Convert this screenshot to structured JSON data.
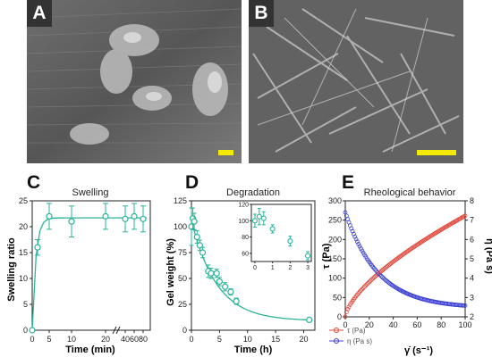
{
  "panels": {
    "a": {
      "label": "A"
    },
    "b": {
      "label": "B"
    },
    "c": {
      "label": "C"
    },
    "d": {
      "label": "D"
    },
    "e": {
      "label": "E"
    }
  },
  "colors": {
    "teal": "#2bb39a",
    "red": "#e0463b",
    "blue": "#3b3fcf",
    "scalebar": "#f2ea00"
  },
  "chart_data": [
    {
      "type": "scatter",
      "title": "Swelling",
      "xlabel": "Time (min)",
      "ylabel": "Swelling ratio",
      "xticks": [
        "0",
        "5",
        "10",
        "20",
        "40",
        "60",
        "80"
      ],
      "yticks": [
        "0",
        "5",
        "10",
        "15",
        "20",
        "25"
      ],
      "ylim": [
        0,
        25
      ],
      "points": [
        {
          "x": "0",
          "y": 0,
          "err": 0
        },
        {
          "x": "2",
          "y": 16,
          "err": 1.5
        },
        {
          "x": "5",
          "y": 22,
          "err": 2.5
        },
        {
          "x": "10",
          "y": 21,
          "err": 3
        },
        {
          "x": "20",
          "y": 22,
          "err": 2.5
        },
        {
          "x": "40",
          "y": 21.5,
          "err": 2.5
        },
        {
          "x": "60",
          "y": 22,
          "err": 2.5
        },
        {
          "x": "80",
          "y": 21.5,
          "err": 2.5
        }
      ],
      "fit_plateau": 21.7
    },
    {
      "type": "scatter",
      "title": "Degradation",
      "xlabel": "Time (h)",
      "ylabel": "Gel weight (%)",
      "xlim": [
        0,
        22
      ],
      "ylim": [
        0,
        125
      ],
      "xticks": [
        0,
        5,
        10,
        15,
        20
      ],
      "yticks": [
        0,
        25,
        50,
        75,
        100,
        125
      ],
      "points": [
        {
          "x": 0,
          "y": 100,
          "err": 18
        },
        {
          "x": 0.25,
          "y": 108,
          "err": 10
        },
        {
          "x": 0.5,
          "y": 105,
          "err": 8
        },
        {
          "x": 1,
          "y": 90,
          "err": 6
        },
        {
          "x": 1.5,
          "y": 82,
          "err": 5
        },
        {
          "x": 2,
          "y": 75,
          "err": 5
        },
        {
          "x": 3,
          "y": 57,
          "err": 6
        },
        {
          "x": 3.5,
          "y": 55,
          "err": 5
        },
        {
          "x": 4.5,
          "y": 55,
          "err": 4
        },
        {
          "x": 5,
          "y": 47,
          "err": 4
        },
        {
          "x": 6,
          "y": 42,
          "err": 4
        },
        {
          "x": 7,
          "y": 37,
          "err": 3
        },
        {
          "x": 8,
          "y": 28,
          "err": 3
        },
        {
          "x": 21,
          "y": 10,
          "err": 2
        }
      ],
      "fit": {
        "plateau": 9,
        "amplitude": 97,
        "tau": 4.5
      },
      "inset": {
        "xlim": [
          -0.2,
          3.2
        ],
        "ylim": [
          50,
          120
        ],
        "xticks": [
          0,
          1,
          2,
          3
        ],
        "yticks": [
          60,
          80,
          100,
          120
        ],
        "points": [
          {
            "x": 0,
            "y": 100,
            "err": 8
          },
          {
            "x": 0.25,
            "y": 105,
            "err": 10
          },
          {
            "x": 0.5,
            "y": 103,
            "err": 8
          },
          {
            "x": 1,
            "y": 90,
            "err": 5
          },
          {
            "x": 2,
            "y": 75,
            "err": 6
          },
          {
            "x": 3,
            "y": 57,
            "err": 5
          }
        ]
      }
    },
    {
      "type": "scatter",
      "title": "Rheological behavior",
      "xlabel": "γ̇ (s⁻¹)",
      "ylabel": "τ (Pa)",
      "y2label": "η (Pa s)",
      "xlim": [
        0,
        100
      ],
      "ylim": [
        0,
        300
      ],
      "y2lim": [
        2,
        8
      ],
      "xticks": [
        0,
        20,
        40,
        60,
        80,
        100
      ],
      "yticks": [
        0,
        50,
        100,
        150,
        200,
        250,
        300
      ],
      "y2ticks": [
        2,
        3,
        4,
        5,
        6,
        7,
        8
      ],
      "legend": "bottom-left",
      "series": [
        {
          "name": "τ (Pa)",
          "axis": "left",
          "model": {
            "type": "power",
            "K": 12.5,
            "n": 0.66
          }
        },
        {
          "name": "η (Pa s)",
          "axis": "right",
          "model": {
            "type": "decay",
            "y0": 2.45,
            "A": 4.95,
            "k": 0.0365
          }
        }
      ]
    }
  ]
}
